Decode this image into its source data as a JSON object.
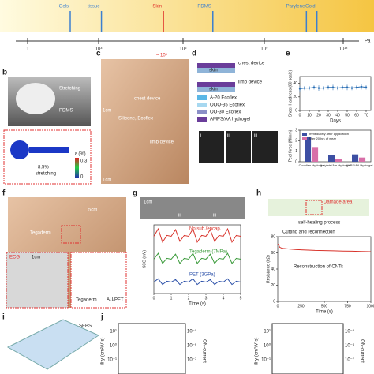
{
  "modulus_scale": {
    "unit": "Pa",
    "skin_estimate": "~ 10⁵",
    "ticks": [
      {
        "value": 0,
        "label": "1"
      },
      {
        "value": 3,
        "label": "10³"
      },
      {
        "value": 6,
        "label": "10⁶"
      },
      {
        "value": 9,
        "label": "10⁹"
      },
      {
        "value": 12,
        "label": "10¹²"
      }
    ],
    "materials": [
      {
        "label": "Gels",
        "value": 1.8,
        "color": "#3b7fd0"
      },
      {
        "label": "tissue",
        "value": 3.1,
        "color": "#3b7fd0"
      },
      {
        "label": "Skin",
        "value": 5.3,
        "color": "#e0302a"
      },
      {
        "label": "PDMS",
        "value": 7.1,
        "color": "#3b7fd0"
      },
      {
        "label": "Parylene",
        "value": 10.6,
        "color": "#3b7fd0"
      },
      {
        "label": "Gold",
        "value": 11.0,
        "color": "#3b7fd0"
      }
    ]
  },
  "panel_labels": {
    "b": "b",
    "c": "c",
    "d": "d",
    "e": "e",
    "f": "f",
    "g": "g",
    "h": "h",
    "i": "i",
    "j": "j"
  },
  "panel_b": {
    "stretching": "Stretching",
    "pdms": "PDMS",
    "strain": "8.5%",
    "strain_caption": "stretching",
    "colorbar_title": "ε (%)",
    "colorbar_max": "0.3",
    "colorbar_min": "0"
  },
  "panel_c": {
    "chest": "chest device",
    "material": "Silicone, Ecoflex",
    "limb": "limb device",
    "scale_top": "1cm",
    "scale_bottom": "1cm"
  },
  "panel_d": {
    "chest": "chest device",
    "limb": "limb device",
    "skin_top": "skin",
    "skin_bottom": "skin",
    "legend": [
      {
        "name": "A-20 Ecoflex",
        "color": "#5bb7e6"
      },
      {
        "name": "OOO-35 Ecoflex",
        "color": "#a7d8f0"
      },
      {
        "name": "OO-30 Ecoflex",
        "color": "#8b8fc7"
      },
      {
        "name": "AMPS/AA hydrogel",
        "color": "#6a3d9a"
      }
    ],
    "insets": [
      "i",
      "ii",
      "iii"
    ]
  },
  "panel_f": {
    "scale": "5cm",
    "tegaderm": "Tegaderm",
    "ecg": "ECG",
    "inset_scale": "1cm",
    "tegaderm_inset": "Tegaderm",
    "au_pet": "AU/PET"
  },
  "panel_g": {
    "scale": "1cm",
    "insets": [
      "i",
      "ii",
      "iii"
    ]
  },
  "panel_h": {
    "damage": "Damage area",
    "process": "self-healing process"
  },
  "panel_i": {
    "sebs": "SEBS"
  },
  "panel_j": {
    "left_ticks": [
      "10¹",
      "10⁰",
      "10⁻¹"
    ],
    "right_ticks": [
      "10⁻⁵",
      "10⁻⁶",
      "10⁻⁷"
    ],
    "left_label": "ility (cm²/V·s)",
    "right_label": "ON-current"
  },
  "charts": {
    "sheer_hardness": {
      "type": "line",
      "y_label": "Sheer Hardness (00 scale)",
      "x_label": "Days",
      "color": "#2a6fb5",
      "x": [
        0,
        5,
        10,
        15,
        20,
        25,
        30,
        35,
        40,
        45,
        50,
        55,
        60,
        65,
        70
      ],
      "values": [
        32,
        33,
        33,
        34,
        33,
        33,
        34,
        34,
        33,
        34,
        34,
        33,
        34,
        35,
        34
      ],
      "errors": [
        4,
        3,
        3,
        3,
        4,
        3,
        3,
        4,
        3,
        3,
        4,
        3,
        3,
        4,
        3
      ],
      "xlim": [
        0,
        75
      ],
      "xticks": [
        0,
        10,
        20,
        30,
        40,
        50,
        60,
        70
      ],
      "ylim": [
        0,
        50
      ],
      "yticks": [
        0,
        20,
        40
      ]
    },
    "peel_force": {
      "type": "bar",
      "y_label": "Peel force (N/mm)",
      "categories": [
        "Covidien Hydrogel",
        "Acrylate/Am Hydrogel",
        "AMPS/AA Hydrogel"
      ],
      "series": [
        {
          "name": "Immediately after application",
          "color": "#3d4fa3",
          "values": [
            2.4,
            0.6,
            0.7
          ]
        },
        {
          "name": "After 20 hrs of wear",
          "color": "#d86fa8",
          "values": [
            1.4,
            0.3,
            0.4
          ]
        }
      ],
      "ylim": [
        0,
        3
      ],
      "yticks": [
        0,
        1,
        2,
        3
      ]
    },
    "scg": {
      "type": "multiline",
      "y_label": "SCG (mV)",
      "x_label": "Time (s)",
      "x": [
        0,
        0.25,
        0.5,
        0.75,
        1,
        1.25,
        1.5,
        1.75,
        2,
        2.25,
        2.5,
        2.75,
        3,
        3.25,
        3.5,
        3.75,
        4,
        4.25,
        4.5,
        4.75,
        5
      ],
      "series": [
        {
          "name": "No sub./encap.",
          "color": "#d8322a",
          "values": [
            0,
            0.9,
            -0.7,
            0.1,
            0,
            0.8,
            -0.6,
            0.1,
            0,
            0.9,
            -0.7,
            0.1,
            0,
            0.8,
            -0.6,
            0.1,
            0,
            0.9,
            -0.7,
            0.1,
            0
          ]
        },
        {
          "name": "Tegaderm (7MPa)",
          "color": "#3a9a3a",
          "values": [
            0,
            0.7,
            -0.5,
            0.1,
            0,
            0.6,
            -0.5,
            0.1,
            0,
            0.7,
            -0.5,
            0.1,
            0,
            0.6,
            -0.5,
            0.1,
            0,
            0.7,
            -0.5,
            0.1,
            0
          ]
        },
        {
          "name": "PET (3GPa)",
          "color": "#2a4fa8",
          "values": [
            0,
            0.4,
            -0.3,
            0.1,
            0,
            0.3,
            -0.3,
            0.1,
            0,
            0.4,
            -0.3,
            0.1,
            0,
            0.3,
            -0.3,
            0.1,
            0,
            0.4,
            -0.3,
            0.1,
            0
          ]
        }
      ],
      "xlim": [
        0,
        5
      ],
      "xticks": [
        0,
        1,
        2,
        3,
        4,
        5
      ],
      "ylim": [
        -1,
        1
      ]
    },
    "resistance": {
      "type": "line",
      "y_label": "Resistance (kΩ)",
      "x_label": "Time (s)",
      "color": "#d8322a",
      "x": [
        0,
        10,
        20,
        40,
        60,
        100,
        150,
        200,
        300,
        400,
        500,
        600,
        700,
        800,
        900,
        1000
      ],
      "values": [
        71,
        70,
        67,
        66,
        65.5,
        65,
        64.5,
        64,
        63.5,
        63,
        62.8,
        62.5,
        62.2,
        62,
        61.8,
        61.5
      ],
      "annotations": [
        "Cutting and reconnection",
        "Reconstruction of CNTs"
      ],
      "xlim": [
        0,
        1000
      ],
      "xticks": [
        0,
        250,
        500,
        750,
        1000
      ],
      "ylim": [
        0,
        80
      ],
      "yticks": [
        0,
        20,
        40,
        60,
        80
      ]
    }
  }
}
